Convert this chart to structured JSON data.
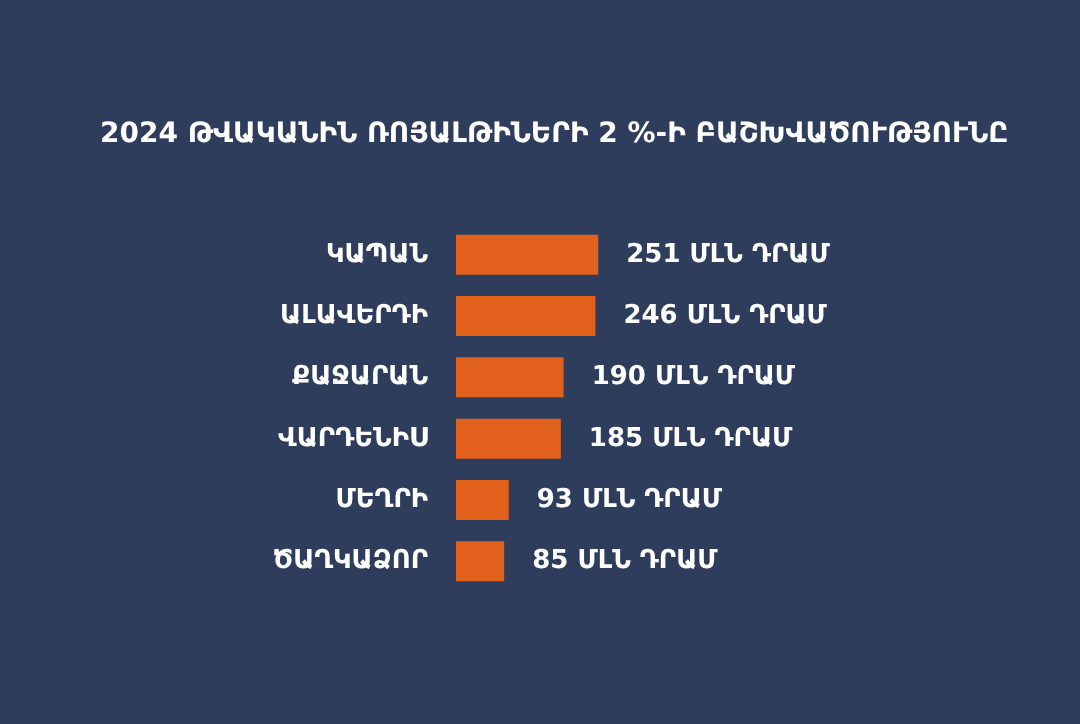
{
  "chart_data": {
    "type": "bar",
    "orientation": "horizontal",
    "title": "2024 ԹՎԱԿԱՆԻՆ ՌՈՅԱԼԹԻՆԵՐԻ 2 %-Ի ԲԱՇԽՎԱԾՈՒԹՅՈՒՆԸ",
    "categories": [
      "ԿԱՊԱՆ",
      "ԱԼԱՎԵՐԴԻ",
      "ՔԱՋԱՐԱՆ",
      "ՎԱՐԴԵՆԻՍ",
      "ՄԵՂՐԻ",
      "ԾԱՂԿԱՁՈՐ"
    ],
    "values": [
      251,
      246,
      190,
      185,
      93,
      85
    ],
    "value_labels": [
      "251 ՄԼՆ ԴՐԱՄ",
      "246 ՄԼՆ ԴՐԱՄ",
      "190 ՄԼՆ ԴՐԱՄ",
      "185 ՄԼՆ ԴՐԱՄ",
      "93 ՄԼՆ ԴՐԱՄ",
      "85 ՄԼՆ ԴՐԱՄ"
    ],
    "color": "#e2611c",
    "tick_labels": "y"
  }
}
